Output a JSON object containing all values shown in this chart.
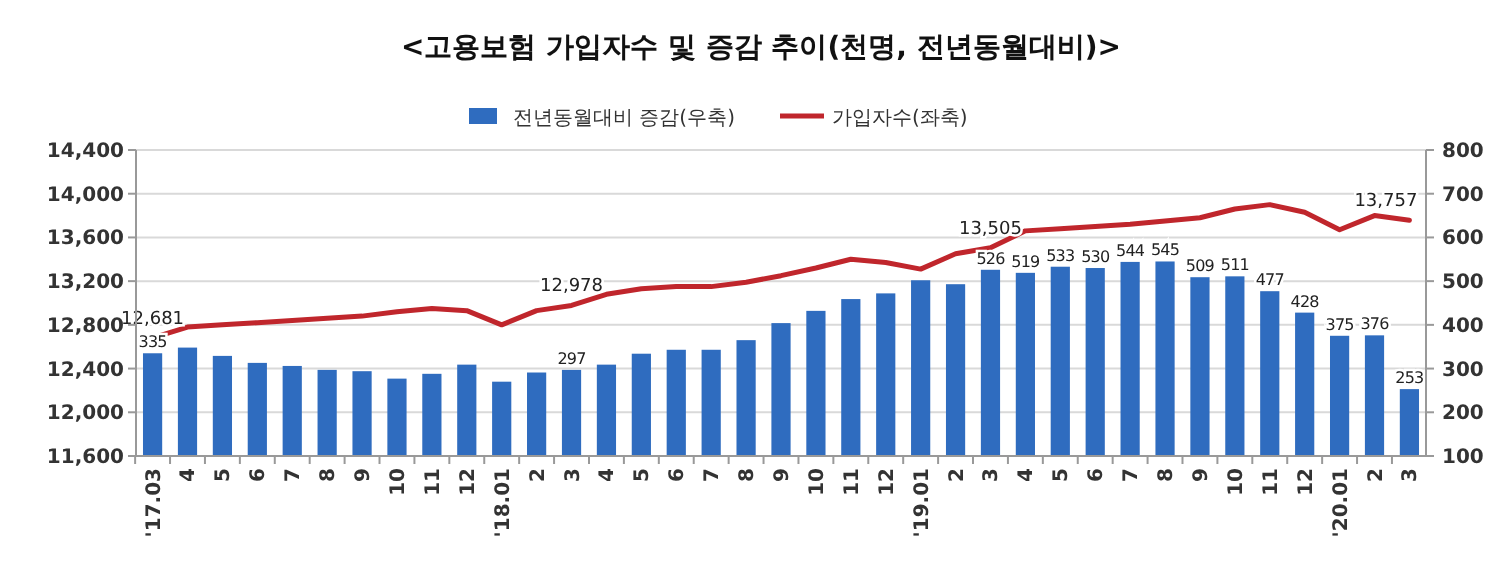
{
  "chart_data": {
    "type": "bar",
    "title": "<고용보험 가입자수 및 증감 추이(천명, 전년동월대비)>",
    "categories": [
      "'17.03",
      "4",
      "5",
      "6",
      "7",
      "8",
      "9",
      "10",
      "11",
      "12",
      "'18.01",
      "2",
      "3",
      "4",
      "5",
      "6",
      "7",
      "8",
      "9",
      "10",
      "11",
      "12",
      "'19.01",
      "2",
      "3",
      "4",
      "5",
      "6",
      "7",
      "8",
      "9",
      "10",
      "11",
      "12",
      "'20.01",
      "2",
      "3"
    ],
    "series": [
      {
        "name": "전년동월대비 증감(우축)",
        "axis": "y2",
        "color": "#2f6cbf",
        "values": [
          335,
          348,
          329,
          313,
          306,
          297,
          294,
          277,
          288,
          309,
          270,
          291,
          297,
          309,
          334,
          343,
          343,
          365,
          404,
          432,
          459,
          472,
          502,
          493,
          526,
          519,
          533,
          530,
          544,
          545,
          509,
          511,
          477,
          428,
          375,
          376,
          253
        ],
        "value_labels": [
          "335",
          null,
          null,
          null,
          null,
          null,
          null,
          null,
          null,
          null,
          null,
          null,
          "297",
          null,
          null,
          null,
          null,
          null,
          null,
          null,
          null,
          null,
          null,
          null,
          "526",
          "519",
          "533",
          "530",
          "544",
          "545",
          "509",
          "511",
          "477",
          "428",
          "375",
          "376",
          "253"
        ]
      },
      {
        "name": "가입자수(좌축)",
        "type": "line",
        "color": "#c0262c",
        "values": [
          12681,
          12780,
          12800,
          12820,
          12840,
          12860,
          12880,
          12920,
          12950,
          12930,
          12800,
          12930,
          12978,
          13080,
          13130,
          13150,
          13150,
          13190,
          13250,
          13320,
          13400,
          13370,
          13310,
          13450,
          13505,
          13660,
          13680,
          13700,
          13720,
          13750,
          13780,
          13860,
          13900,
          13830,
          13670,
          13800,
          13757
        ],
        "value_labels": [
          "12,681",
          null,
          null,
          null,
          null,
          null,
          null,
          null,
          null,
          null,
          null,
          null,
          "12,978",
          null,
          null,
          null,
          null,
          null,
          null,
          null,
          null,
          null,
          null,
          null,
          "13,505",
          null,
          null,
          null,
          null,
          null,
          null,
          null,
          null,
          null,
          null,
          null,
          "13,757"
        ]
      }
    ],
    "ylim": [
      11600,
      14400
    ],
    "yticks": [
      {
        "value": 11600,
        "label": "11,600"
      },
      {
        "value": 12000,
        "label": "12,000"
      },
      {
        "value": 12400,
        "label": "12,400"
      },
      {
        "value": 12800,
        "label": "12,800"
      },
      {
        "value": 13200,
        "label": "13,200"
      },
      {
        "value": 13600,
        "label": "13,600"
      },
      {
        "value": 14000,
        "label": "14,000"
      },
      {
        "value": 14400,
        "label": "14,400"
      }
    ],
    "y2lim": [
      100,
      800
    ],
    "y2ticks": [
      100,
      200,
      300,
      400,
      500,
      600,
      700,
      800
    ],
    "grid": "y",
    "legend": "top"
  }
}
